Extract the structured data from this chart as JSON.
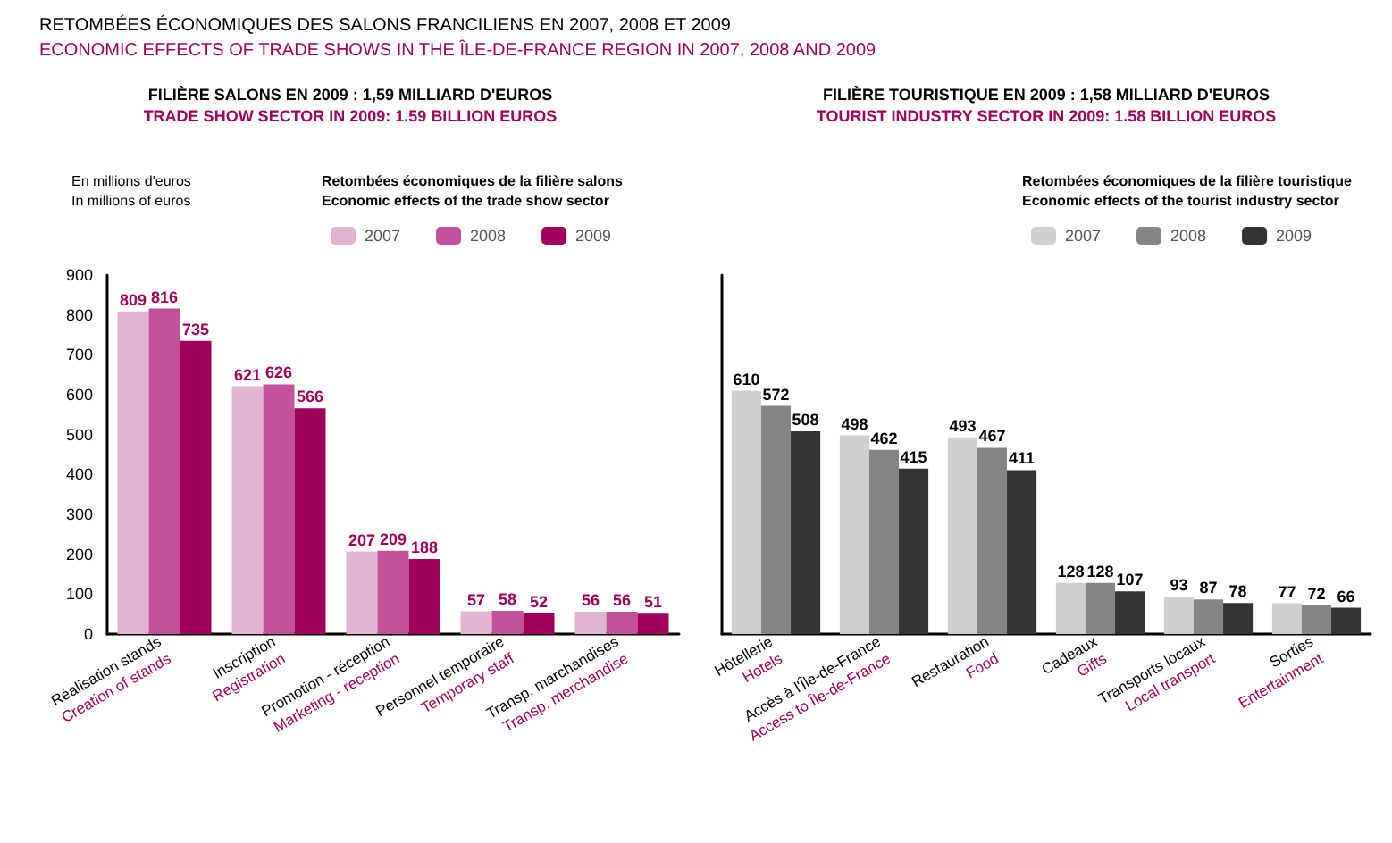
{
  "chart_data": [
    {
      "type": "bar",
      "title": "FILIÈRE SALONS EN 2009 : 1,59 MILLIARD D'EUROS",
      "subtitle": "TRADE SHOW SECTOR IN 2009: 1.59 BILLION EUROS",
      "annotations": [
        "RETOMBÉES ÉCONOMIQUES DES SALONS FRANCILIENS EN 2007, 2008 ET 2009",
        "ECONOMIC EFFECTS OF TRADE SHOWS IN THE ÎLE-DE-FRANCE REGION IN 2007, 2008 AND 2009"
      ],
      "ylabel": "En millions d'euros\nIn millions of euros",
      "legend_title": "Retombées économiques de la filière salons\nEconomic effects of the trade show sector",
      "categories": [
        "Réalisation stands\nCreation of stands",
        "Inscription\nRegistration",
        "Promotion - réception\nMarketing - reception",
        "Personnel temporaire\nTemporary staff",
        "Transp. marchandises\nTransp. merchandise"
      ],
      "series": [
        {
          "name": "2007",
          "color": "#e2b4d2",
          "values": [
            809,
            621,
            207,
            57,
            56
          ]
        },
        {
          "name": "2008",
          "color": "#c4519c",
          "values": [
            816,
            626,
            209,
            58,
            56
          ]
        },
        {
          "name": "2009",
          "color": "#a0005c",
          "values": [
            735,
            566,
            188,
            52,
            51
          ]
        }
      ],
      "ylim": [
        0,
        900
      ],
      "yticks": [
        0,
        100,
        200,
        300,
        400,
        500,
        600,
        700,
        800,
        900
      ],
      "grid": false,
      "legend": "top right",
      "data_labels": true
    },
    {
      "type": "bar",
      "title": "FILIÈRE TOURISTIQUE EN 2009 : 1,58 MILLIARD D'EUROS",
      "subtitle": "TOURIST INDUSTRY SECTOR IN 2009: 1.58 BILLION EUROS",
      "legend_title": "Retombées économiques de la filière touristique\nEconomic effects of the tourist industry sector",
      "categories": [
        "Hôtellerie\nHotels",
        "Accès à l'Île-de-France\nAccess to Île-de-France",
        "Restauration\nFood",
        "Cadeaux\nGifts",
        "Transports locaux\nLocal transport",
        "Sorties\nEntertainment"
      ],
      "series": [
        {
          "name": "2007",
          "color": "#cfcfcf",
          "values": [
            610,
            498,
            493,
            128,
            93,
            77
          ]
        },
        {
          "name": "2008",
          "color": "#858585",
          "values": [
            572,
            462,
            467,
            128,
            87,
            72
          ]
        },
        {
          "name": "2009",
          "color": "#333333",
          "values": [
            508,
            415,
            411,
            107,
            78,
            66
          ]
        }
      ],
      "ylim": [
        0,
        900
      ],
      "tick_labels": "x",
      "grid": false,
      "legend": "top right",
      "data_labels": true
    }
  ]
}
